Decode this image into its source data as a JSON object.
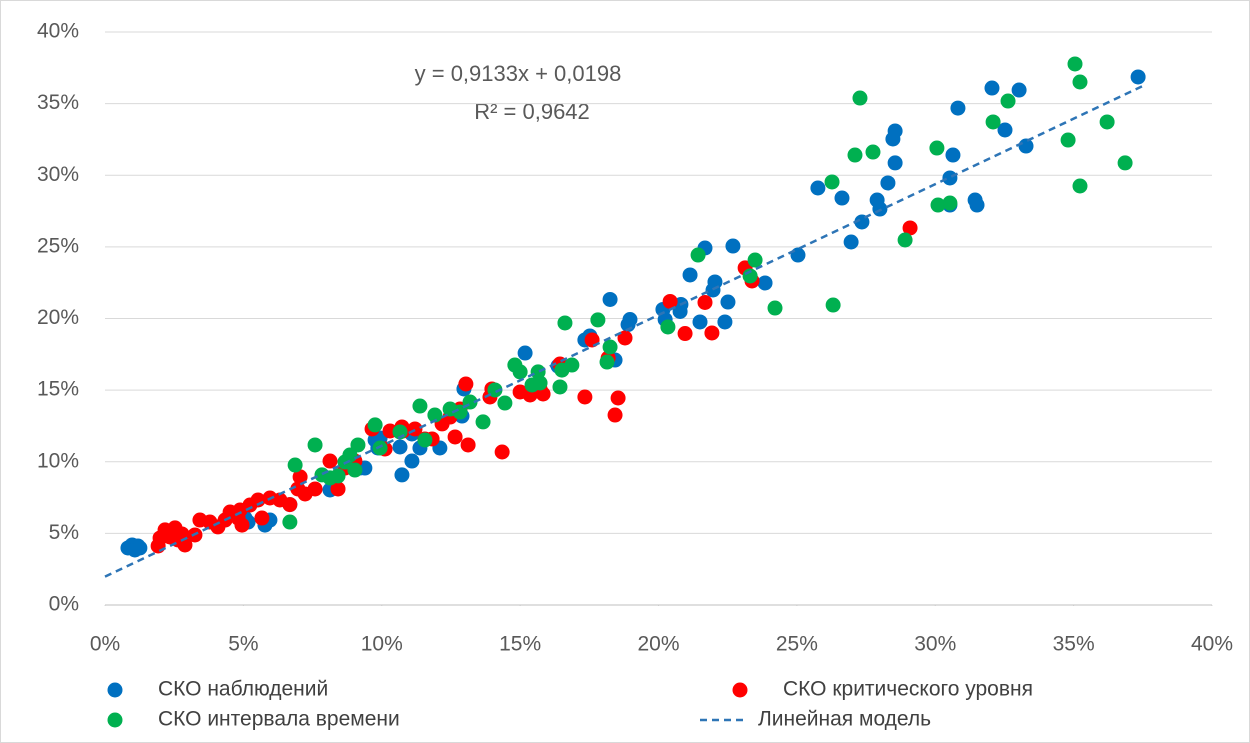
{
  "chart_data": {
    "type": "scatter",
    "annotations": [
      "y = 0,9133x + 0,0198",
      "R² = 0,9642"
    ],
    "annotation_color": "#2e75b6",
    "xlim": [
      0,
      40
    ],
    "ylim": [
      0,
      40
    ],
    "xticks": [
      {
        "value": 0,
        "label": "0%"
      },
      {
        "value": 5,
        "label": "5%"
      },
      {
        "value": 10,
        "label": "10%"
      },
      {
        "value": 15,
        "label": "15%"
      },
      {
        "value": 20,
        "label": "20%"
      },
      {
        "value": 25,
        "label": "25%"
      },
      {
        "value": 30,
        "label": "30%"
      },
      {
        "value": 35,
        "label": "35%"
      },
      {
        "value": 40,
        "label": "40%"
      }
    ],
    "yticks": [
      {
        "value": 0,
        "label": "0%"
      },
      {
        "value": 5,
        "label": "5%"
      },
      {
        "value": 10,
        "label": "10%"
      },
      {
        "value": 15,
        "label": "15%"
      },
      {
        "value": 20,
        "label": "20%"
      },
      {
        "value": 25,
        "label": "25%"
      },
      {
        "value": 30,
        "label": "30%"
      },
      {
        "value": 35,
        "label": "35%"
      },
      {
        "value": 40,
        "label": "40%"
      }
    ],
    "grid": true,
    "legend": "bottom",
    "series": [
      {
        "name": "СКО наблюдений",
        "color": "#0070c0",
        "x": [
          0.83,
          0.98,
          1.08,
          1.19,
          1.26,
          5.06,
          5.17,
          5.78,
          5.96,
          6.68,
          8.13,
          9.21,
          9.86,
          9.94,
          9.76,
          9.39,
          10.73,
          11.09,
          10.66,
          11.09,
          11.38,
          12.1,
          12.97,
          12.9,
          15.18,
          16.37,
          17.34,
          17.52,
          18.43,
          18.25,
          18.9,
          18.97,
          20.16,
          20.24,
          20.78,
          20.81,
          21.14,
          21.5,
          21.97,
          22.04,
          21.68,
          22.4,
          22.51,
          22.69,
          23.85,
          25.04,
          25.76,
          26.63,
          26.96,
          27.35,
          27.9,
          28.0,
          28.29,
          28.47,
          28.55,
          28.55,
          30.53,
          30.53,
          30.64,
          30.82,
          31.44,
          31.51,
          32.05,
          32.52,
          33.03,
          33.28,
          37.33
        ],
        "values": [
          3.98,
          4.19,
          3.84,
          4.12,
          3.98,
          6.07,
          5.79,
          5.58,
          5.93,
          7.01,
          8.03,
          9.56,
          10.96,
          11.66,
          11.52,
          9.56,
          9.08,
          10.05,
          11.03,
          11.94,
          10.96,
          10.96,
          15.08,
          13.19,
          17.59,
          16.68,
          18.5,
          18.78,
          17.1,
          21.33,
          19.58,
          19.93,
          20.63,
          19.93,
          20.49,
          20.98,
          23.04,
          19.76,
          21.99,
          22.55,
          24.92,
          19.76,
          21.15,
          25.06,
          22.48,
          24.43,
          29.11,
          28.41,
          25.34,
          26.74,
          28.27,
          27.64,
          29.46,
          32.53,
          33.09,
          30.86,
          29.81,
          27.92,
          31.41,
          34.69,
          28.27,
          27.92,
          36.09,
          33.16,
          35.95,
          32.04,
          36.86
        ]
      },
      {
        "name": "СКО критического уровня",
        "color": "#ff0000",
        "x": [
          1.92,
          1.99,
          2.17,
          2.35,
          2.53,
          2.64,
          2.78,
          2.89,
          3.25,
          3.43,
          3.79,
          4.08,
          4.34,
          4.52,
          4.81,
          4.95,
          4.88,
          5.24,
          5.53,
          5.67,
          5.96,
          6.32,
          6.68,
          7.05,
          6.97,
          7.23,
          7.59,
          8.13,
          8.42,
          8.67,
          9.03,
          9.65,
          10.12,
          10.3,
          10.73,
          10.77,
          11.2,
          11.56,
          11.82,
          12.18,
          12.47,
          12.65,
          12.83,
          13.04,
          13.12,
          13.91,
          13.98,
          14.35,
          15.0,
          15.36,
          15.72,
          15.83,
          16.44,
          17.34,
          17.6,
          18.18,
          18.43,
          18.54,
          18.79,
          20.42,
          20.96,
          21.68,
          21.93,
          23.13,
          23.38,
          29.09
        ],
        "values": [
          4.12,
          4.68,
          5.24,
          4.75,
          5.38,
          4.54,
          4.96,
          4.19,
          4.89,
          5.93,
          5.79,
          5.45,
          5.93,
          6.49,
          6.07,
          5.58,
          6.63,
          6.98,
          7.33,
          6.07,
          7.47,
          7.33,
          7.01,
          8.94,
          8.1,
          7.75,
          8.1,
          10.05,
          8.1,
          9.56,
          10.05,
          12.29,
          10.89,
          12.15,
          12.43,
          12.15,
          12.29,
          11.59,
          11.59,
          12.64,
          13.12,
          11.73,
          13.68,
          15.43,
          11.17,
          14.52,
          15.08,
          10.68,
          14.87,
          14.66,
          15.08,
          14.73,
          16.82,
          14.52,
          18.5,
          17.24,
          13.26,
          14.45,
          18.64,
          21.19,
          18.95,
          21.12,
          18.99,
          23.53,
          22.62,
          26.32
        ]
      },
      {
        "name": "СКО интервала времени",
        "color": "#00b050",
        "x": [
          6.68,
          6.87,
          7.59,
          7.84,
          8.13,
          8.42,
          8.67,
          8.85,
          9.03,
          9.14,
          9.76,
          9.94,
          10.66,
          11.38,
          11.56,
          11.92,
          12.47,
          12.83,
          13.19,
          13.66,
          14.09,
          14.45,
          14.81,
          15.0,
          15.43,
          15.65,
          15.72,
          16.44,
          16.51,
          16.62,
          16.87,
          17.81,
          18.14,
          18.25,
          20.34,
          21.43,
          23.31,
          23.49,
          24.21,
          26.27,
          26.31,
          27.1,
          27.28,
          27.75,
          28.91,
          30.06,
          30.1,
          30.53,
          32.09,
          32.63,
          34.8,
          35.05,
          35.23,
          35.23,
          36.21,
          36.86
        ],
        "values": [
          5.79,
          9.77,
          11.17,
          9.08,
          8.87,
          9.01,
          9.98,
          10.47,
          9.42,
          11.17,
          12.57,
          10.96,
          12.08,
          13.89,
          11.52,
          13.26,
          13.68,
          13.47,
          14.17,
          12.78,
          15.01,
          14.1,
          16.75,
          16.27,
          15.36,
          16.27,
          15.5,
          15.22,
          16.4,
          19.69,
          16.75,
          19.9,
          16.96,
          18.01,
          19.41,
          24.43,
          22.97,
          24.08,
          20.73,
          29.53,
          20.94,
          31.41,
          35.39,
          31.62,
          25.48,
          31.9,
          27.92,
          28.06,
          33.72,
          35.18,
          32.46,
          37.77,
          36.51,
          29.25,
          33.72,
          30.86
        ]
      },
      {
        "name": "Линейная модель",
        "type": "line",
        "dashed": true,
        "color": "#2e75b6",
        "x": [
          0,
          37.5
        ],
        "values": [
          1.98,
          36.23
        ]
      }
    ]
  }
}
